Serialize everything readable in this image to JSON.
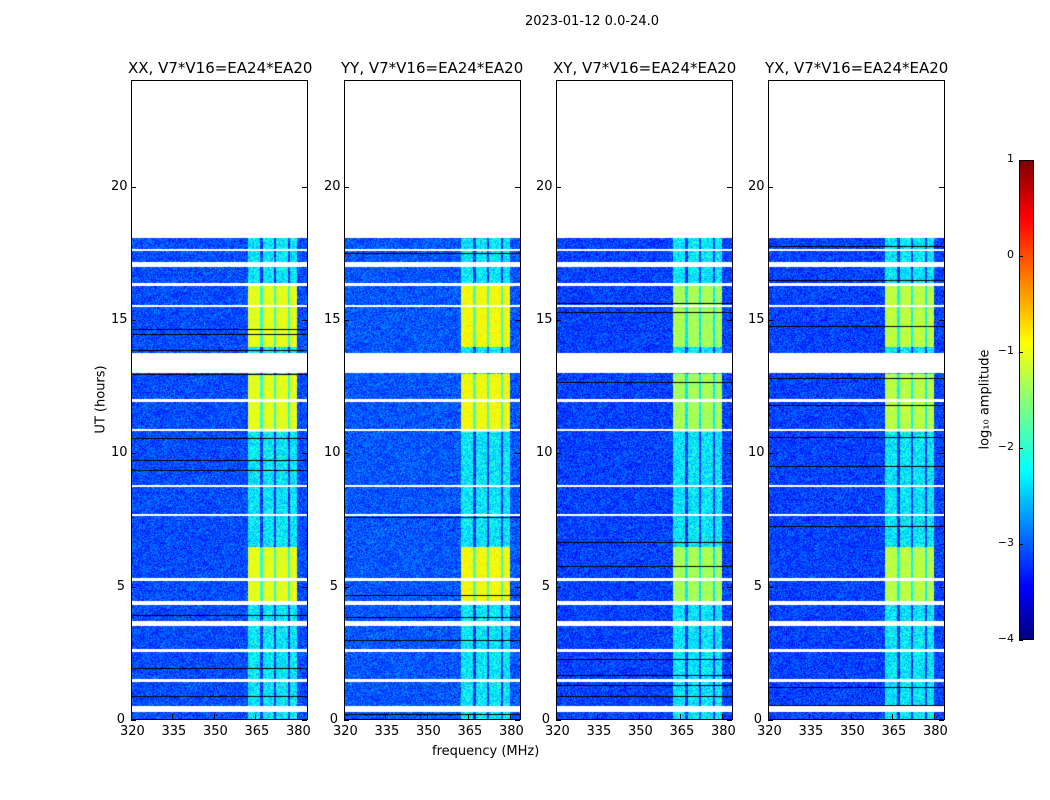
{
  "chart_data": {
    "type": "heatmap",
    "title": "2023-01-12 0.0-24.0",
    "xlabel": "frequency (MHz)",
    "ylabel": "UT (hours)",
    "xlim": [
      320,
      384
    ],
    "ylim": [
      0,
      24
    ],
    "xticks": [
      "320",
      "335",
      "350",
      "365",
      "380"
    ],
    "yticks": [
      "0",
      "5",
      "10",
      "15",
      "20"
    ],
    "panels": [
      {
        "title": "XX, V7*V16=EA24*EA20",
        "band_level": -1.0,
        "bg_level": -3.0
      },
      {
        "title": "YY, V7*V16=EA24*EA20",
        "band_level": -0.9,
        "bg_level": -2.95
      },
      {
        "title": "XY, V7*V16=EA24*EA20",
        "band_level": -1.3,
        "bg_level": -3.05
      },
      {
        "title": "YX, V7*V16=EA24*EA20",
        "band_level": -1.2,
        "bg_level": -3.05
      }
    ],
    "data_ut_range": [
      0,
      18.1
    ],
    "rfi_band_mhz": [
      362,
      380
    ],
    "bright_ut_intervals": [
      [
        4.5,
        6.5
      ],
      [
        10.8,
        13.0
      ],
      [
        14.0,
        16.4
      ]
    ],
    "flagged_ut_intervals": [
      [
        17.0,
        17.2
      ],
      [
        13.05,
        13.8
      ],
      [
        11.95,
        12.05
      ],
      [
        10.85,
        10.95
      ],
      [
        8.75,
        8.85
      ],
      [
        7.65,
        7.75
      ],
      [
        5.25,
        5.35
      ],
      [
        4.35,
        4.5
      ],
      [
        3.55,
        3.75
      ],
      [
        2.55,
        2.7
      ],
      [
        1.45,
        1.55
      ],
      [
        0.3,
        0.55
      ],
      [
        15.5,
        15.6
      ],
      [
        16.3,
        16.4
      ],
      [
        17.6,
        17.7
      ]
    ],
    "colorbar": {
      "label": "log₁₀ amplitude",
      "range": [
        -4,
        1
      ],
      "ticks": [
        "1",
        "0",
        "−1",
        "−2",
        "−3",
        "−4"
      ],
      "colormap": "jet"
    }
  }
}
